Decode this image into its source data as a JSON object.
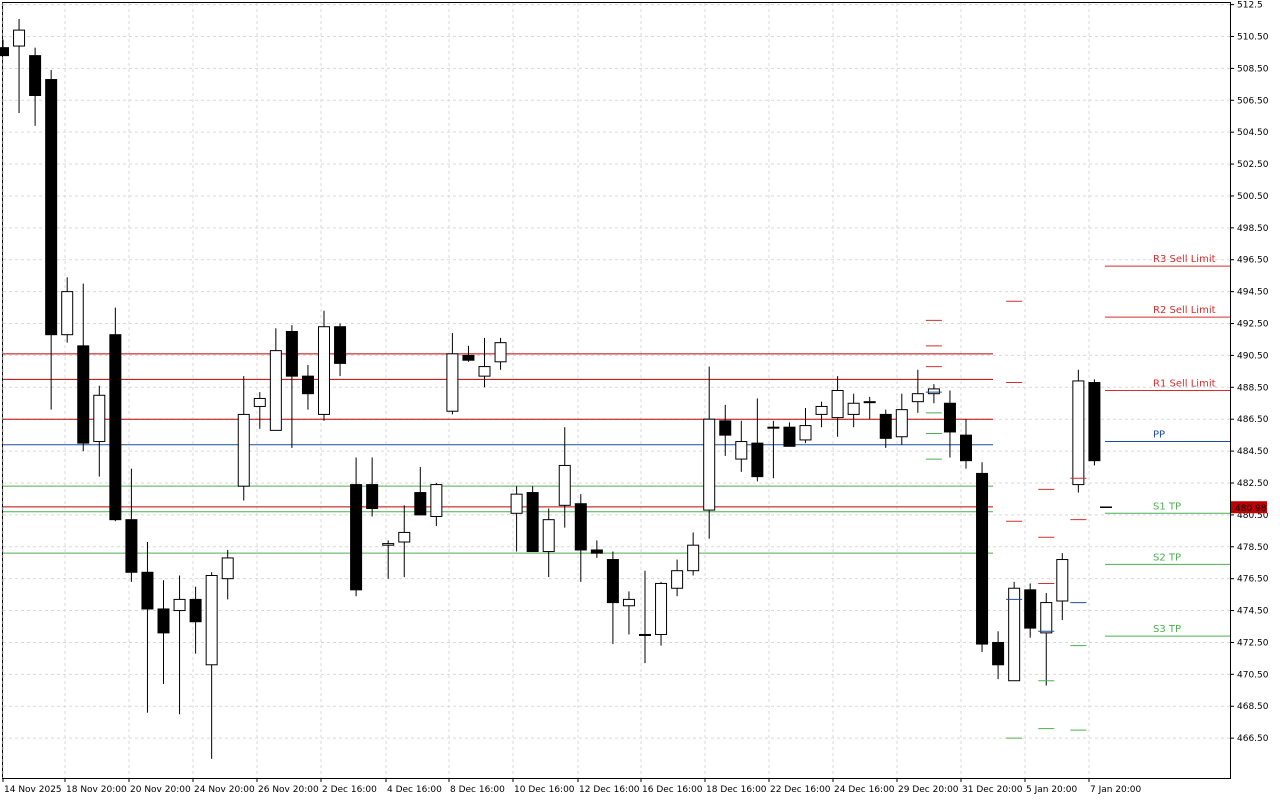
{
  "chart_data": {
    "type": "candlestick",
    "x_tick_labels": [
      "14 Nov 2025",
      "18 Nov 20:00",
      "20 Nov 20:00",
      "24 Nov 20:00",
      "26 Nov 20:00",
      "2 Dec 16:00",
      "4 Dec 16:00",
      "8 Dec 16:00",
      "10 Dec 16:00",
      "12 Dec 16:00",
      "16 Dec 16:00",
      "18 Dec 16:00",
      "22 Dec 16:00",
      "24 Dec 16:00",
      "29 Dec 20:00",
      "31 Dec 20:00",
      "5 Jan 20:00",
      "7 Jan 20:00"
    ],
    "y_ticks": [
      "512.5",
      "510.50",
      "508.50",
      "506.50",
      "504.50",
      "502.50",
      "500.50",
      "498.50",
      "496.50",
      "494.50",
      "492.50",
      "490.50",
      "488.50",
      "486.50",
      "484.50",
      "482.50",
      "480.50",
      "478.50",
      "476.50",
      "474.50",
      "472.50",
      "470.50",
      "468.50",
      "466.50"
    ],
    "ylim": [
      464.0,
      512.6
    ],
    "current_price": {
      "label": "480.98",
      "value": 480.98,
      "color": "#c00000"
    },
    "candles": [
      {
        "o": 509.8,
        "h": 510.3,
        "l": 509.3,
        "c": 509.3
      },
      {
        "o": 509.9,
        "h": 511.6,
        "l": 505.7,
        "c": 510.9
      },
      {
        "o": 509.3,
        "h": 509.8,
        "l": 504.9,
        "c": 506.8
      },
      {
        "o": 507.8,
        "h": 508.4,
        "l": 487.1,
        "c": 491.8
      },
      {
        "o": 491.8,
        "h": 495.4,
        "l": 491.3,
        "c": 494.5
      },
      {
        "o": 491.1,
        "h": 495.0,
        "l": 484.5,
        "c": 485.0
      },
      {
        "o": 485.1,
        "h": 488.6,
        "l": 482.9,
        "c": 488.0
      },
      {
        "o": 491.8,
        "h": 493.5,
        "l": 480.1,
        "c": 480.2
      },
      {
        "o": 480.2,
        "h": 483.4,
        "l": 476.3,
        "c": 476.9
      },
      {
        "o": 476.9,
        "h": 478.8,
        "l": 468.1,
        "c": 474.6
      },
      {
        "o": 474.6,
        "h": 476.4,
        "l": 469.9,
        "c": 473.1
      },
      {
        "o": 474.5,
        "h": 476.7,
        "l": 468.0,
        "c": 475.2
      },
      {
        "o": 475.2,
        "h": 476.0,
        "l": 471.8,
        "c": 473.8
      },
      {
        "o": 471.1,
        "h": 476.9,
        "l": 465.2,
        "c": 476.7
      },
      {
        "o": 476.5,
        "h": 478.3,
        "l": 475.2,
        "c": 477.8
      },
      {
        "o": 482.3,
        "h": 489.2,
        "l": 481.4,
        "c": 486.8
      },
      {
        "o": 487.3,
        "h": 488.2,
        "l": 485.9,
        "c": 487.8
      },
      {
        "o": 485.8,
        "h": 492.2,
        "l": 485.8,
        "c": 490.8
      },
      {
        "o": 492.0,
        "h": 492.4,
        "l": 484.7,
        "c": 489.2
      },
      {
        "o": 489.2,
        "h": 489.9,
        "l": 487.1,
        "c": 488.1
      },
      {
        "o": 486.8,
        "h": 493.3,
        "l": 486.4,
        "c": 492.3
      },
      {
        "o": 492.3,
        "h": 492.5,
        "l": 489.2,
        "c": 490.0
      },
      {
        "o": 482.4,
        "h": 484.1,
        "l": 475.4,
        "c": 475.8
      },
      {
        "o": 482.4,
        "h": 484.1,
        "l": 480.4,
        "c": 480.9
      },
      {
        "o": 478.6,
        "h": 478.9,
        "l": 476.5,
        "c": 478.7
      },
      {
        "o": 478.8,
        "h": 481.1,
        "l": 476.6,
        "c": 479.4
      },
      {
        "o": 481.9,
        "h": 483.5,
        "l": 480.5,
        "c": 480.5
      },
      {
        "o": 480.4,
        "h": 482.5,
        "l": 479.8,
        "c": 482.4
      },
      {
        "o": 487.0,
        "h": 491.9,
        "l": 486.8,
        "c": 490.6
      },
      {
        "o": 490.5,
        "h": 491.1,
        "l": 490.1,
        "c": 490.2
      },
      {
        "o": 489.2,
        "h": 491.6,
        "l": 488.5,
        "c": 489.8
      },
      {
        "o": 490.1,
        "h": 491.6,
        "l": 489.6,
        "c": 491.3
      },
      {
        "o": 480.6,
        "h": 482.3,
        "l": 478.2,
        "c": 481.8
      },
      {
        "o": 481.9,
        "h": 482.3,
        "l": 478.2,
        "c": 478.2
      },
      {
        "o": 478.2,
        "h": 480.9,
        "l": 476.6,
        "c": 480.2
      },
      {
        "o": 481.1,
        "h": 486.0,
        "l": 479.7,
        "c": 483.6
      },
      {
        "o": 481.2,
        "h": 481.8,
        "l": 476.3,
        "c": 478.3
      },
      {
        "o": 478.3,
        "h": 478.9,
        "l": 477.8,
        "c": 478.1
      },
      {
        "o": 477.7,
        "h": 478.2,
        "l": 472.4,
        "c": 475.0
      },
      {
        "o": 474.8,
        "h": 475.7,
        "l": 473.0,
        "c": 475.2
      },
      {
        "o": 473.0,
        "h": 477.0,
        "l": 471.2,
        "c": 473.0
      },
      {
        "o": 473.0,
        "h": 476.3,
        "l": 472.3,
        "c": 476.2
      },
      {
        "o": 475.9,
        "h": 477.7,
        "l": 475.4,
        "c": 477.0
      },
      {
        "o": 477.0,
        "h": 479.4,
        "l": 476.7,
        "c": 478.6
      },
      {
        "o": 480.8,
        "h": 489.8,
        "l": 479.0,
        "c": 486.5
      },
      {
        "o": 486.4,
        "h": 487.4,
        "l": 484.2,
        "c": 485.5
      },
      {
        "o": 484.0,
        "h": 486.4,
        "l": 483.2,
        "c": 485.1
      },
      {
        "o": 485.0,
        "h": 487.8,
        "l": 482.6,
        "c": 482.9
      },
      {
        "o": 486.0,
        "h": 486.4,
        "l": 482.8,
        "c": 486.0
      },
      {
        "o": 486.0,
        "h": 486.3,
        "l": 485.1,
        "c": 484.8
      },
      {
        "o": 485.2,
        "h": 487.2,
        "l": 485.0,
        "c": 486.1
      },
      {
        "o": 486.8,
        "h": 487.6,
        "l": 486.0,
        "c": 487.3
      },
      {
        "o": 486.6,
        "h": 489.2,
        "l": 485.4,
        "c": 488.3
      },
      {
        "o": 486.8,
        "h": 488.1,
        "l": 486.0,
        "c": 487.5
      },
      {
        "o": 487.6,
        "h": 487.9,
        "l": 486.5,
        "c": 487.6
      },
      {
        "o": 486.8,
        "h": 487.1,
        "l": 484.7,
        "c": 485.3
      },
      {
        "o": 485.4,
        "h": 488.1,
        "l": 484.9,
        "c": 487.1
      },
      {
        "o": 487.6,
        "h": 489.6,
        "l": 486.9,
        "c": 488.1
      },
      {
        "o": 488.1,
        "h": 488.7,
        "l": 487.5,
        "c": 488.4
      },
      {
        "o": 487.5,
        "h": 488.3,
        "l": 484.1,
        "c": 485.7
      },
      {
        "o": 485.5,
        "h": 486.5,
        "l": 483.4,
        "c": 483.9
      },
      {
        "o": 483.1,
        "h": 483.8,
        "l": 471.9,
        "c": 472.4
      },
      {
        "o": 472.5,
        "h": 473.2,
        "l": 470.2,
        "c": 471.1
      },
      {
        "o": 470.1,
        "h": 476.3,
        "l": 470.1,
        "c": 475.9
      },
      {
        "o": 475.8,
        "h": 476.2,
        "l": 472.8,
        "c": 473.4
      },
      {
        "o": 473.1,
        "h": 475.6,
        "l": 469.8,
        "c": 475.0
      },
      {
        "o": 475.1,
        "h": 478.1,
        "l": 473.9,
        "c": 477.7
      },
      {
        "o": 482.4,
        "h": 489.6,
        "l": 481.9,
        "c": 488.9
      },
      {
        "o": 488.8,
        "h": 489.0,
        "l": 483.6,
        "c": 483.9
      }
    ],
    "levels": [
      {
        "name": "",
        "value": 490.6,
        "color": "#c00000"
      },
      {
        "name": "",
        "value": 489.0,
        "color": "#c00000"
      },
      {
        "name": "",
        "value": 486.5,
        "color": "#c00000"
      },
      {
        "name": "",
        "value": 484.9,
        "color": "#1f4e99"
      },
      {
        "name": "",
        "value": 482.3,
        "color": "#4caf50"
      },
      {
        "name": "",
        "value": 481.0,
        "color": "#c00000"
      },
      {
        "name": "",
        "value": 480.7,
        "color": "#4caf50"
      },
      {
        "name": "",
        "value": 478.1,
        "color": "#4caf50"
      }
    ],
    "labeled_levels": [
      {
        "name": "R3 Sell Limit",
        "value": 496.1,
        "color": "#d32f2f"
      },
      {
        "name": "R2 Sell Limit",
        "value": 492.9,
        "color": "#d32f2f"
      },
      {
        "name": "R1 Sell Limit",
        "value": 488.3,
        "color": "#d32f2f"
      },
      {
        "name": "PP",
        "value": 485.1,
        "color": "#1f4e99"
      },
      {
        "name": "S1 TP",
        "value": 480.6,
        "color": "#4caf50"
      },
      {
        "name": "S2 TP",
        "value": 477.4,
        "color": "#4caf50"
      },
      {
        "name": "S3 TP",
        "value": 472.9,
        "color": "#4caf50"
      }
    ],
    "pivot_marks": [
      {
        "i": 58,
        "value": 492.7,
        "color": "#d32f2f"
      },
      {
        "i": 58,
        "value": 491.1,
        "color": "#d32f2f"
      },
      {
        "i": 58,
        "value": 489.8,
        "color": "#d32f2f"
      },
      {
        "i": 58,
        "value": 488.2,
        "color": "#1f4e99"
      },
      {
        "i": 58,
        "value": 486.9,
        "color": "#4caf50"
      },
      {
        "i": 58,
        "value": 485.6,
        "color": "#4caf50"
      },
      {
        "i": 58,
        "value": 484.0,
        "color": "#4caf50"
      },
      {
        "i": 63,
        "value": 493.9,
        "color": "#d32f2f"
      },
      {
        "i": 63,
        "value": 488.8,
        "color": "#d32f2f"
      },
      {
        "i": 63,
        "value": 480.1,
        "color": "#d32f2f"
      },
      {
        "i": 63,
        "value": 475.2,
        "color": "#1f4e99"
      },
      {
        "i": 63,
        "value": 466.5,
        "color": "#4caf50"
      },
      {
        "i": 65,
        "value": 482.1,
        "color": "#d32f2f"
      },
      {
        "i": 65,
        "value": 479.1,
        "color": "#d32f2f"
      },
      {
        "i": 65,
        "value": 476.2,
        "color": "#d32f2f"
      },
      {
        "i": 65,
        "value": 473.2,
        "color": "#1f4e99"
      },
      {
        "i": 65,
        "value": 470.1,
        "color": "#4caf50"
      },
      {
        "i": 65,
        "value": 467.1,
        "color": "#4caf50"
      },
      {
        "i": 67,
        "value": 482.8,
        "color": "#d32f2f"
      },
      {
        "i": 67,
        "value": 480.2,
        "color": "#d32f2f"
      },
      {
        "i": 67,
        "value": 475.0,
        "color": "#1f4e99"
      },
      {
        "i": 67,
        "value": 472.3,
        "color": "#4caf50"
      },
      {
        "i": 67,
        "value": 467.0,
        "color": "#4caf50"
      }
    ]
  }
}
